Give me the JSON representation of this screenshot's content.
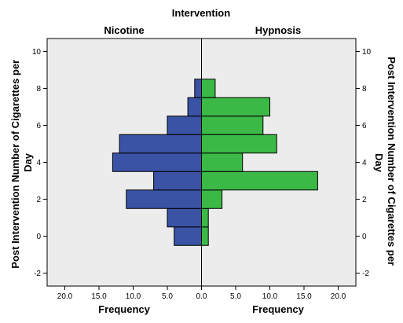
{
  "chart_data": {
    "type": "bar",
    "orientation": "horizontal",
    "layout": "population-pyramid",
    "title": "Intervention",
    "panels": [
      {
        "name": "Nicotine",
        "color": "#3a53a4",
        "xlabel": "Frequency"
      },
      {
        "name": "Hypnosis",
        "color": "#3cb846",
        "xlabel": "Frequency"
      }
    ],
    "ylabel": "Post Intervention Number of Cigarettes per Day",
    "ylabel_right": "Post Intervention Number of Cigarettes per Day",
    "ylim": [
      -2.7,
      10.7
    ],
    "y_ticks": [
      -2,
      0,
      2,
      4,
      6,
      8,
      10
    ],
    "xlim": [
      0,
      21
    ],
    "x_ticks": [
      "0.0",
      "5.0",
      "10.0",
      "15.0",
      "20.0"
    ],
    "bin_width": 1,
    "bins": [
      0,
      1,
      2,
      3,
      4,
      5,
      6,
      7,
      8
    ],
    "series": [
      {
        "name": "Nicotine",
        "values": [
          4,
          5,
          11,
          7,
          13,
          12,
          5,
          2,
          1
        ]
      },
      {
        "name": "Hypnosis",
        "values": [
          1,
          1,
          3,
          17,
          6,
          11,
          9,
          10,
          2
        ]
      }
    ],
    "plot_background": "#ececec",
    "grid": false
  }
}
